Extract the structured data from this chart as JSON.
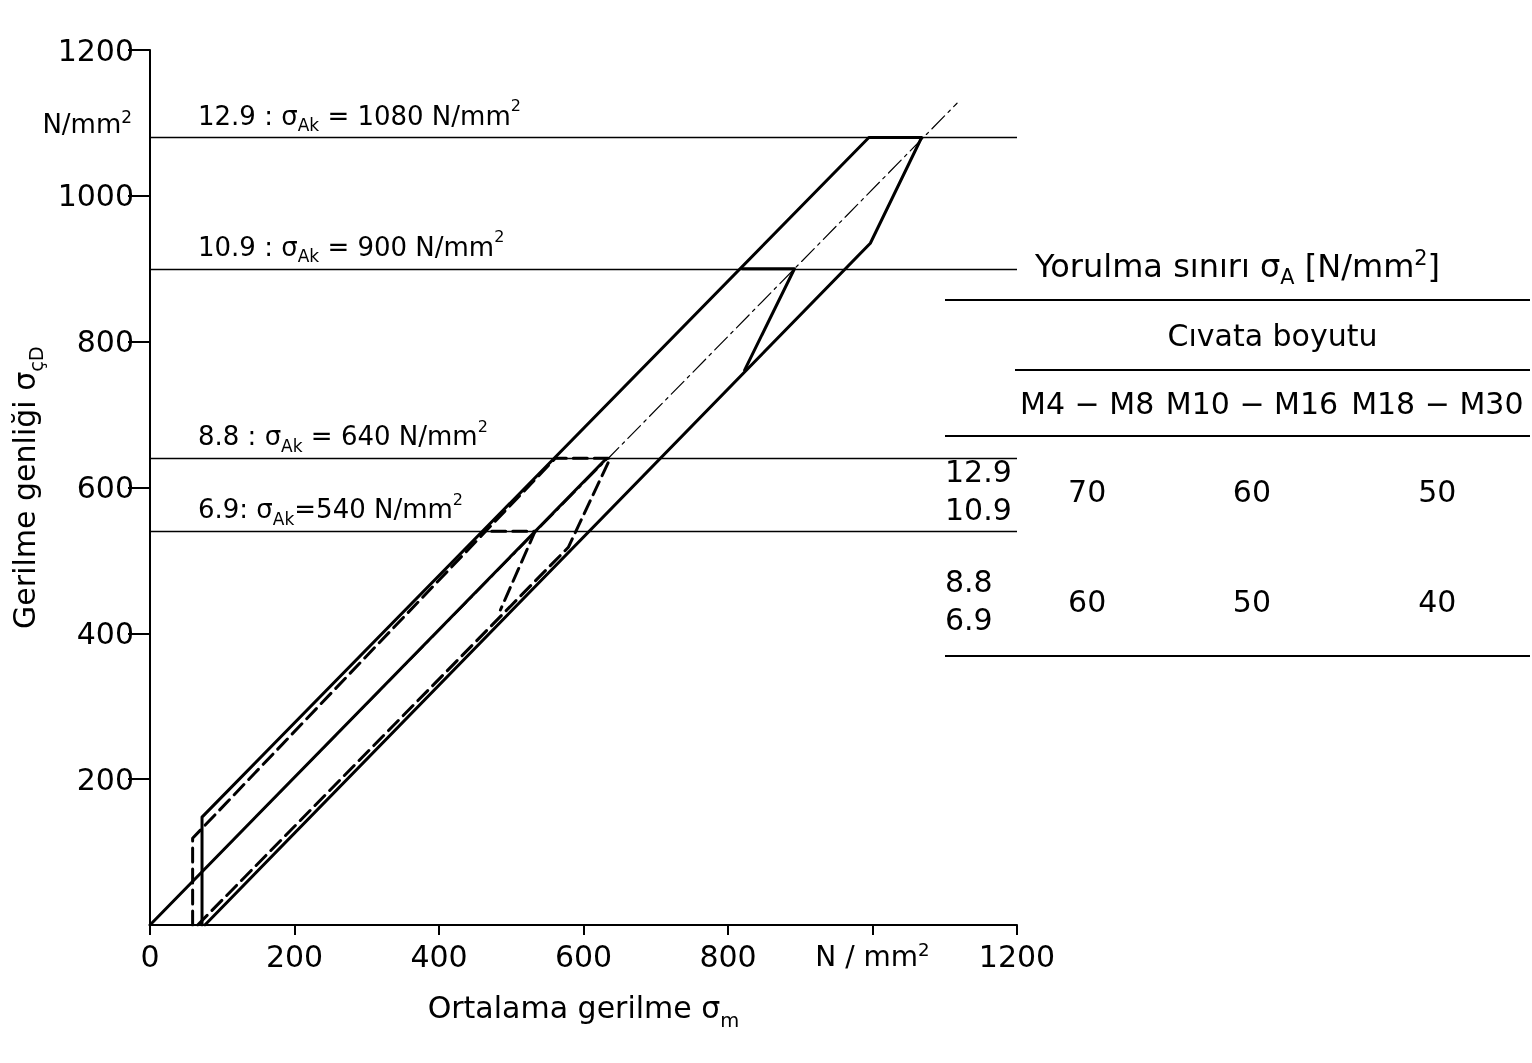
{
  "chart_data": {
    "type": "line",
    "xlabel": "Ortalama gerilme σ$_{m}$",
    "ylabel": "Gerilme genliği σ$_{çD}$",
    "xlim": [
      0,
      1200
    ],
    "ylim": [
      0,
      1200
    ],
    "xticks": [
      0,
      200,
      400,
      600,
      800,
      {
        "value": 1000,
        "label": null
      },
      1200
    ],
    "yticks": [
      200,
      400,
      600,
      800,
      1000,
      1200
    ],
    "grid": false,
    "marker": "none",
    "series": [
      {
        "color": "#000000",
        "line_style": "solid",
        "x": [
          72,
          72,
          995,
          1068,
          997,
          76
        ],
        "values": [
          0,
          148,
          1080,
          1080,
          935,
          0
        ]
      },
      {
        "color": "#000000",
        "line_style": "solid",
        "x": [
          820,
          892,
          823
        ],
        "values": [
          900,
          900,
          761
        ]
      },
      {
        "color": "#000000",
        "line_style": "dashed",
        "x": [
          59,
          59,
          561,
          637,
          579,
          66
        ],
        "values": [
          0,
          119,
          640,
          640,
          518,
          0
        ]
      },
      {
        "color": "#000000",
        "line_style": "dashed",
        "x": [
          473,
          533,
          485
        ],
        "values": [
          540,
          540,
          432
        ]
      },
      {
        "color": "#000000",
        "line_style": "solid",
        "x": [
          0,
          630
        ],
        "values": [
          0,
          638
        ]
      },
      {
        "color": "#000000",
        "line_style": "dotted",
        "x": [
          0,
          1117
        ],
        "values": [
          0,
          1127
        ]
      }
    ],
    "ref_lines": [
      {
        "axis": "y",
        "value": 1080,
        "label": "12.9 : σ$_{Ak}$ = 1080 N/mm$^{2}$",
        "color": "#000000"
      },
      {
        "axis": "y",
        "value": 900,
        "label": "10.9 : σ$_{Ak}$ = 900 N/mm$^{2}$",
        "color": "#000000"
      },
      {
        "axis": "y",
        "value": 640,
        "label": "8.8 : σ$_{Ak}$ = 640 N/mm$^{2}$",
        "color": "#000000"
      },
      {
        "axis": "y",
        "value": 540,
        "label": "6.9: σ$_{Ak}$=540 N/mm$^{2}$",
        "color": "#000000"
      }
    ],
    "annotations": [
      "Yorulma sınırı σ$_{A}$ [N/mm$^{2}$]",
      "Cıvata boyutu",
      "M4 − M8",
      "M10 − M16",
      "M18 − M30",
      "12.9",
      "10.9",
      "70",
      "60",
      "50",
      "8.8",
      "6.9",
      "60",
      "50",
      "40",
      "N / mm$^{2}$",
      "N/mm$^{2}$"
    ]
  }
}
